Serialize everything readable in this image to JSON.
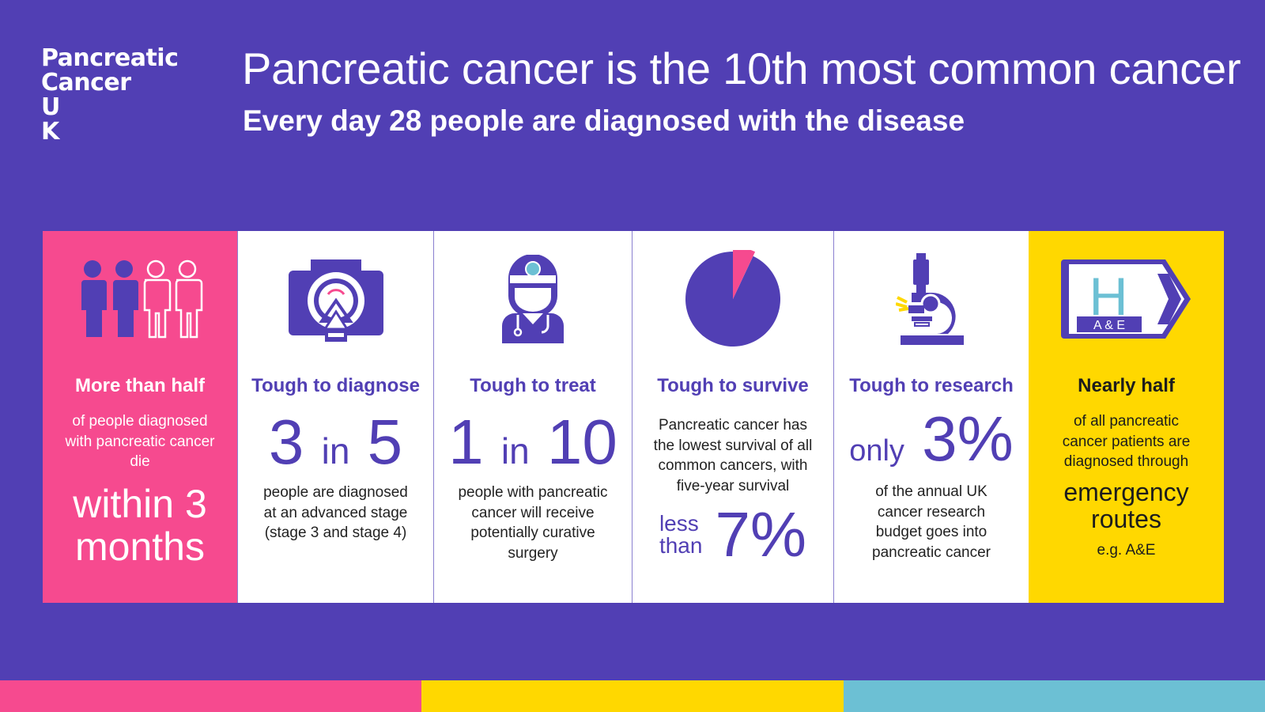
{
  "logo": {
    "line1": "Pancreatic",
    "line2": "Cancer",
    "line3": "U",
    "line4": "K"
  },
  "headline": "Pancreatic cancer is the 10th most common cancer",
  "subheadline": "Every day 28 people are diagnosed with the disease",
  "panels": {
    "p1": {
      "title": "More than half",
      "text": "of people diagnosed with pancreatic cancer die",
      "big": "within 3 months",
      "icon": "people-icon",
      "stat_fraction": 0.5
    },
    "p2": {
      "title": "Tough to diagnose",
      "num1": "3",
      "word": "in",
      "num2": "5",
      "text": "people are diagnosed at an advanced stage (stage 3 and stage 4)",
      "icon": "scanner-icon"
    },
    "p3": {
      "title": "Tough to treat",
      "num1": "1",
      "word": "in",
      "num2": "10",
      "text": "people with pancreatic cancer will receive potentially curative surgery",
      "icon": "surgeon-icon"
    },
    "p4": {
      "title": "Tough to survive",
      "text": "Pancreatic cancer has the lowest survival of all common cancers, with five-year survival",
      "less": "less",
      "than": "than",
      "num": "7%",
      "icon": "pie-chart-icon",
      "survival_percent": 7
    },
    "p5": {
      "title": "Tough to research",
      "only": "only",
      "num": "3%",
      "text": "of the annual UK cancer research budget goes into pancreatic cancer",
      "icon": "microscope-icon"
    },
    "p6": {
      "title": "Nearly half",
      "text": "of all pancreatic cancer patients are diagnosed through",
      "big": "emergency routes",
      "eg": "e.g. A&E",
      "sign_letter": "H",
      "sign_label": "A & E",
      "icon": "hospital-sign-icon"
    }
  },
  "colors": {
    "background": "#513fb4",
    "pink": "#f64a8f",
    "yellow": "#ffd800",
    "teal": "#6cc0d4",
    "white": "#ffffff"
  }
}
